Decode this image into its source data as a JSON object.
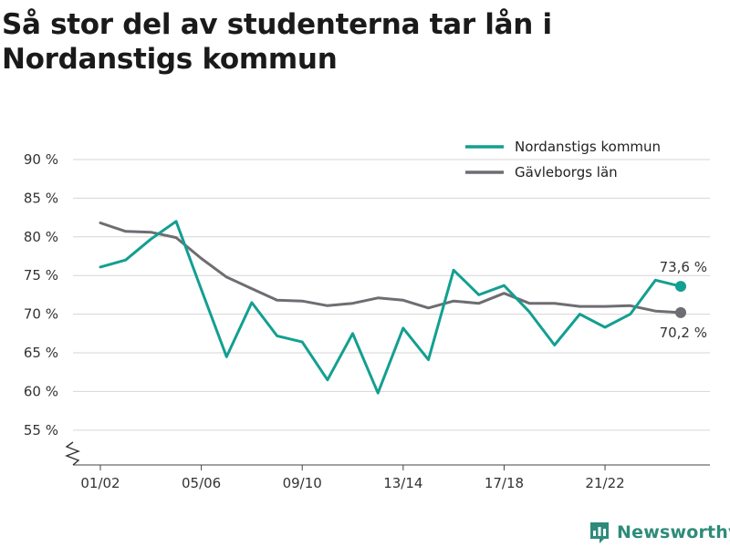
{
  "title": "Så stor del av studenterna tar lån i Nordanstigs kommun",
  "brand": {
    "name": "Newsworthy",
    "icon": "bar-chart-logo-icon"
  },
  "chart_data": {
    "type": "line",
    "title": "Så stor del av studenterna tar lån i Nordanstigs kommun",
    "xlabel": "",
    "ylabel": "",
    "categories": [
      "01/02",
      "02/03",
      "03/04",
      "04/05",
      "05/06",
      "06/07",
      "07/08",
      "08/09",
      "09/10",
      "10/11",
      "11/12",
      "12/13",
      "13/14",
      "14/15",
      "15/16",
      "16/17",
      "17/18",
      "18/19",
      "19/20",
      "20/21",
      "21/22",
      "22/23",
      "23/24",
      "24/25"
    ],
    "x_tick_labels": [
      "01/02",
      "05/06",
      "09/10",
      "13/14",
      "17/18",
      "21/22"
    ],
    "y_ticks": [
      55,
      60,
      65,
      70,
      75,
      80,
      85,
      90
    ],
    "y_tick_labels": [
      "55 %",
      "60 %",
      "65 %",
      "70 %",
      "75 %",
      "80 %",
      "85 %",
      "90 %"
    ],
    "ylim": [
      50.5,
      92
    ],
    "axis_break": true,
    "grid": "horizontal",
    "legend_position": "top-right",
    "series": [
      {
        "name": "Nordanstigs kommun",
        "color": "#139f91",
        "values": [
          76.1,
          77.0,
          79.7,
          82.0,
          73.2,
          64.5,
          71.5,
          67.2,
          66.4,
          61.5,
          67.5,
          59.8,
          68.2,
          64.1,
          75.7,
          72.5,
          73.7,
          70.3,
          66.0,
          70.0,
          68.3,
          70.0,
          74.4,
          73.6
        ],
        "end_label": "73,6 %"
      },
      {
        "name": "Gävleborgs län",
        "color": "#6e6d72",
        "values": [
          81.8,
          80.7,
          80.6,
          79.9,
          77.2,
          74.8,
          73.3,
          71.8,
          71.7,
          71.1,
          71.4,
          72.1,
          71.8,
          70.8,
          71.7,
          71.4,
          72.7,
          71.4,
          71.4,
          71.0,
          71.0,
          71.1,
          70.4,
          70.2
        ],
        "end_label": "70,2 %"
      }
    ]
  }
}
